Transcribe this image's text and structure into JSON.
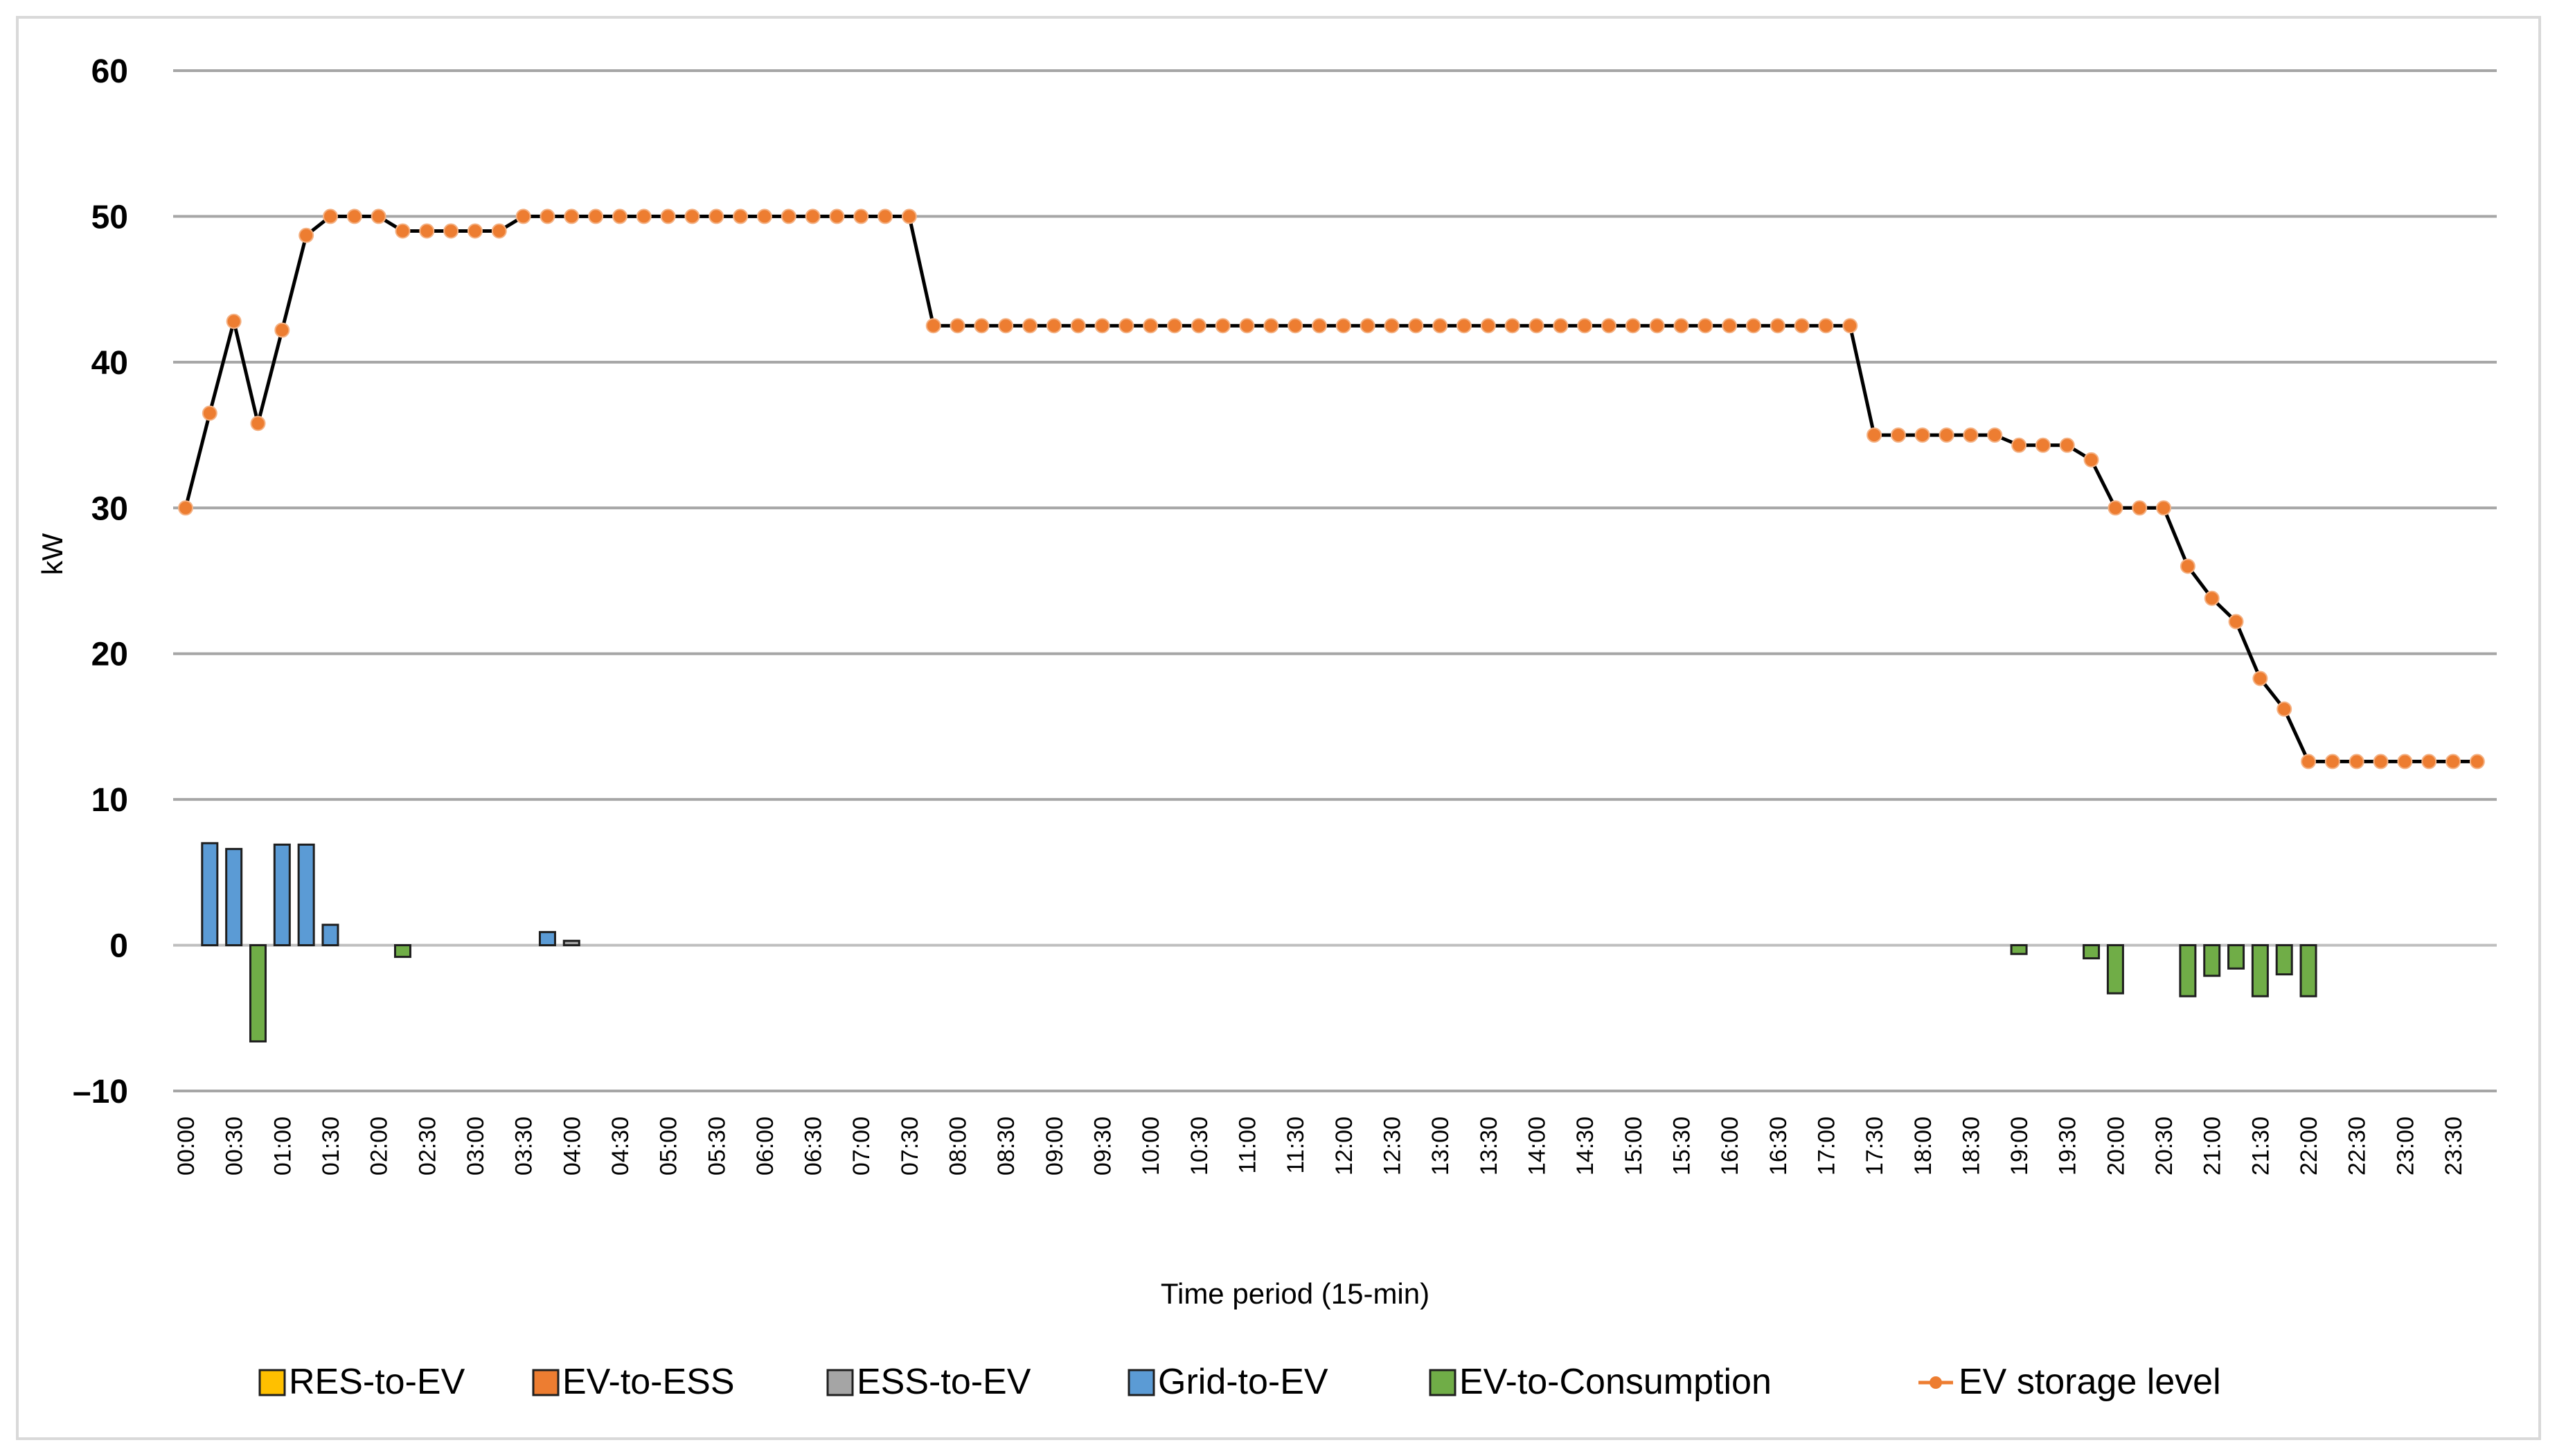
{
  "chart_data": {
    "type": "bar+line",
    "title": "",
    "xlabel": "Time period (15-min)",
    "ylabel": "kW",
    "ylim": [
      -10,
      60
    ],
    "yticks": [
      "60",
      "50",
      "40",
      "30",
      "20",
      "10",
      "0",
      "–10"
    ],
    "y_tick_values": [
      60,
      50,
      40,
      30,
      20,
      10,
      0,
      -10
    ],
    "x_tick_labels": [
      "00:00",
      "00:30",
      "01:00",
      "01:30",
      "02:00",
      "02:30",
      "03:00",
      "03:30",
      "04:00",
      "04:30",
      "05:00",
      "05:30",
      "06:00",
      "06:30",
      "07:00",
      "07:30",
      "08:00",
      "08:30",
      "09:00",
      "09:30",
      "10:00",
      "10:30",
      "11:00",
      "11:30",
      "12:00",
      "12:30",
      "13:00",
      "13:30",
      "14:00",
      "14:30",
      "15:00",
      "15:30",
      "16:00",
      "16:30",
      "17:00",
      "17:30",
      "18:00",
      "18:30",
      "19:00",
      "19:30",
      "20:00",
      "20:30",
      "21:00",
      "21:30",
      "22:00",
      "22:30",
      "23:00",
      "23:30"
    ],
    "grid": true,
    "legend_placement": "bottom",
    "series": [
      {
        "name": "RES-to-EV",
        "kind": "bar",
        "color": "#FFC000",
        "values": {}
      },
      {
        "name": "EV-to-ESS",
        "kind": "bar",
        "color": "#ED7D31",
        "values": {}
      },
      {
        "name": "ESS-to-EV",
        "kind": "bar",
        "color": "#A5A5A5",
        "values": {
          "16": 0.3
        }
      },
      {
        "name": "Grid-to-EV",
        "kind": "bar",
        "color": "#5B9BD5",
        "values": {
          "1": 7.0,
          "2": 6.6,
          "4": 6.9,
          "5": 6.9,
          "6": 1.4,
          "15": 0.9
        }
      },
      {
        "name": "EV-to-Consumption",
        "kind": "bar",
        "color": "#70AD47",
        "values": {
          "3": -6.6,
          "9": -0.8,
          "76": -0.6,
          "79": -0.9,
          "80": -3.3,
          "83": -3.5,
          "84": -2.1,
          "85": -1.6,
          "86": -3.5,
          "87": -2.0,
          "88": -3.5
        }
      },
      {
        "name": "EV storage level",
        "kind": "line",
        "color": "#ED7D31",
        "line_color": "#000000",
        "values": [
          30,
          36.5,
          42.8,
          35.8,
          42.2,
          48.7,
          50,
          50,
          50,
          49,
          49,
          49,
          49,
          49,
          50,
          50,
          50,
          50,
          50,
          50,
          50,
          50,
          50,
          50,
          50,
          50,
          50,
          50,
          50,
          50,
          50,
          42.5,
          42.5,
          42.5,
          42.5,
          42.5,
          42.5,
          42.5,
          42.5,
          42.5,
          42.5,
          42.5,
          42.5,
          42.5,
          42.5,
          42.5,
          42.5,
          42.5,
          42.5,
          42.5,
          42.5,
          42.5,
          42.5,
          42.5,
          42.5,
          42.5,
          42.5,
          42.5,
          42.5,
          42.5,
          42.5,
          42.5,
          42.5,
          42.5,
          42.5,
          42.5,
          42.5,
          42.5,
          42.5,
          42.5,
          35,
          35,
          35,
          35,
          35,
          35,
          34.3,
          34.3,
          34.3,
          33.3,
          30,
          30,
          30,
          26,
          23.8,
          22.2,
          18.3,
          16.2,
          12.6,
          12.6,
          12.6,
          12.6,
          12.6,
          12.6,
          12.6,
          12.6
        ]
      }
    ]
  }
}
